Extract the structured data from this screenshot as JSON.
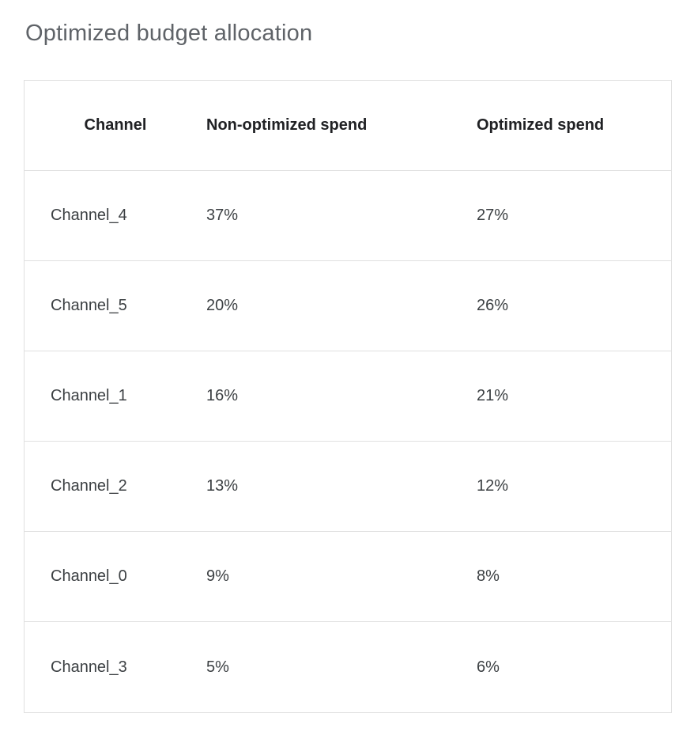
{
  "title": "Optimized budget allocation",
  "table": {
    "columns": [
      "Channel",
      "Non-optimized spend",
      "Optimized spend"
    ],
    "rows": [
      {
        "channel": "Channel_4",
        "non_optimized": "37%",
        "optimized": "27%"
      },
      {
        "channel": "Channel_5",
        "non_optimized": "20%",
        "optimized": "26%"
      },
      {
        "channel": "Channel_1",
        "non_optimized": "16%",
        "optimized": "21%"
      },
      {
        "channel": "Channel_2",
        "non_optimized": "13%",
        "optimized": "12%"
      },
      {
        "channel": "Channel_0",
        "non_optimized": "9%",
        "optimized": "8%"
      },
      {
        "channel": "Channel_3",
        "non_optimized": "5%",
        "optimized": "6%"
      }
    ]
  },
  "chart_data": {
    "type": "table",
    "title": "Optimized budget allocation",
    "columns": [
      "Channel",
      "Non-optimized spend",
      "Optimized spend"
    ],
    "categories": [
      "Channel_4",
      "Channel_5",
      "Channel_1",
      "Channel_2",
      "Channel_0",
      "Channel_3"
    ],
    "series": [
      {
        "name": "Non-optimized spend",
        "values": [
          37,
          20,
          16,
          13,
          9,
          5
        ],
        "unit": "%"
      },
      {
        "name": "Optimized spend",
        "values": [
          27,
          26,
          21,
          12,
          8,
          6
        ],
        "unit": "%"
      }
    ],
    "colors": {
      "title_text": "#5f6368",
      "header_text": "#202124",
      "cell_text": "#3c4043",
      "border": "#e0e0e0",
      "background": "#ffffff"
    }
  }
}
